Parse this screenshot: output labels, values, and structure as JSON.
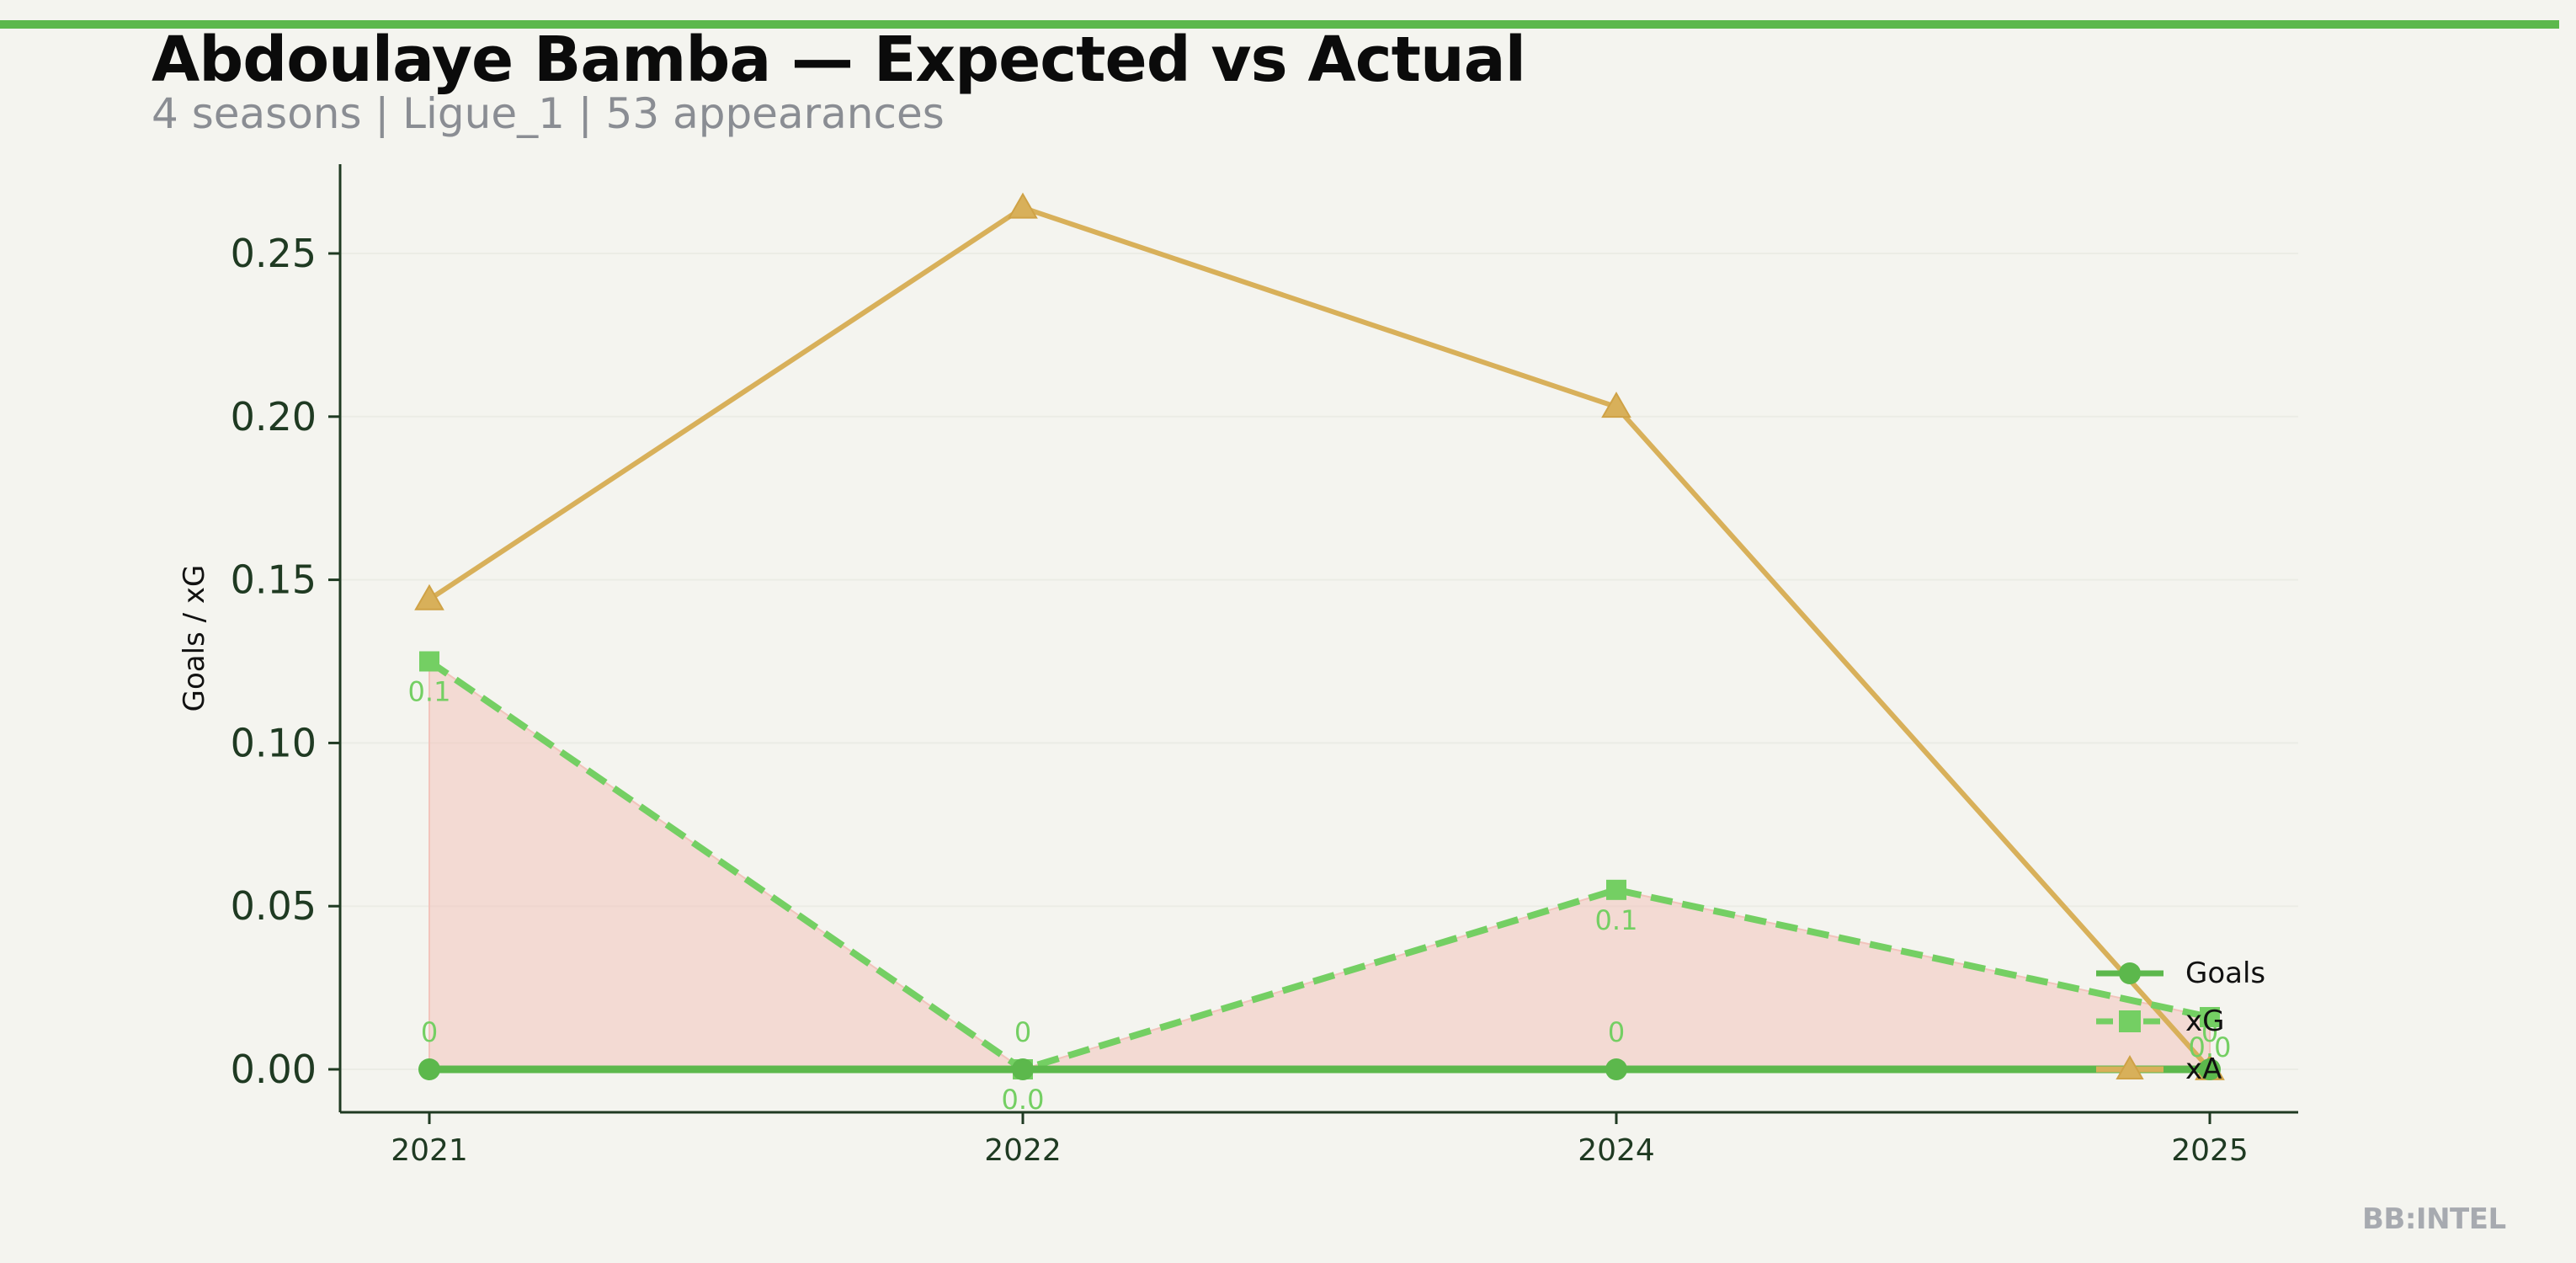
{
  "header": {
    "title": "Abdoulaye Bamba — Expected vs Actual",
    "subtitle": "4 seasons | Ligue_1 | 53 appearances"
  },
  "watermark": "BB:INTEL",
  "colors": {
    "accent_bar": "#5cb84c",
    "goals": "#5cb84c",
    "xg": "#74cf63",
    "xa": "#d8b05a",
    "fill": "#f2c4bc",
    "axis": "#1f3a22",
    "grid": "#ebece5"
  },
  "chart_data": {
    "type": "line",
    "categories": [
      "2021",
      "2022",
      "2024",
      "2025"
    ],
    "ylabel": "Goals / xG",
    "xlabel": "",
    "ylim": [
      -0.013,
      0.28
    ],
    "yticks": [
      "0.00",
      "0.05",
      "0.10",
      "0.15",
      "0.20",
      "0.25"
    ],
    "grid": true,
    "legend_position": "lower-right",
    "series": [
      {
        "name": "Goals",
        "key": "goals",
        "values": [
          0,
          0,
          0,
          0
        ],
        "style": "solid",
        "marker": "circle",
        "labels": [
          "0",
          "0",
          "0",
          "0"
        ]
      },
      {
        "name": "xG",
        "key": "xg",
        "values": [
          0.125,
          0.0,
          0.055,
          0.016
        ],
        "style": "dashed",
        "marker": "square",
        "labels": [
          "0.1",
          "0.0",
          "0.1",
          "0.0"
        ]
      },
      {
        "name": "xA",
        "key": "xa",
        "values": [
          0.144,
          0.264,
          0.203,
          0.0
        ],
        "style": "solid",
        "marker": "triangle"
      }
    ],
    "shaded_area": "between xG and Goals"
  }
}
